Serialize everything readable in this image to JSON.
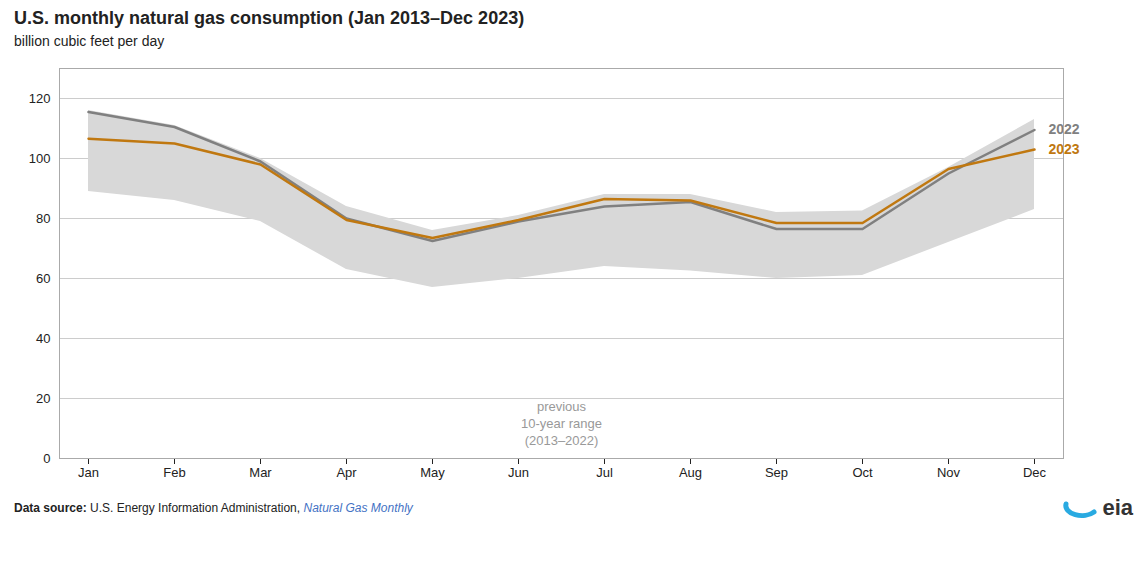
{
  "chart_data": {
    "type": "line",
    "title": "U.S. monthly natural gas consumption (Jan 2013–Dec 2023)",
    "subtitle": "billion cubic feet per day",
    "categories": [
      "Jan",
      "Feb",
      "Mar",
      "Apr",
      "May",
      "Jun",
      "Jul",
      "Aug",
      "Sep",
      "Oct",
      "Nov",
      "Dec"
    ],
    "series": [
      {
        "name": "2022",
        "color": "#808080",
        "values": [
          115.5,
          110.5,
          99.0,
          80.0,
          72.5,
          79.0,
          84.0,
          85.5,
          76.5,
          76.5,
          95.0,
          109.5
        ]
      },
      {
        "name": "2023",
        "color": "#C07810",
        "values": [
          106.6,
          105.0,
          98.0,
          79.5,
          73.5,
          79.5,
          86.5,
          86.0,
          78.5,
          78.5,
          96.5,
          103.0
        ]
      }
    ],
    "range_upper": [
      116.0,
      111.0,
      100.0,
      84.0,
      76.0,
      81.0,
      88.0,
      88.0,
      82.0,
      82.5,
      97.0,
      113.0
    ],
    "range_lower": [
      89.0,
      86.0,
      79.0,
      63.0,
      57.0,
      60.0,
      64.0,
      62.5,
      60.0,
      61.0,
      72.0,
      83.0
    ],
    "range_color": "#D8D8D8",
    "annotations": [
      "previous\n10-year range\n(2013–2022)"
    ],
    "ylim": [
      0,
      130
    ],
    "yticks": [
      0,
      20,
      40,
      60,
      80,
      100,
      120
    ],
    "grid": true,
    "source_label": "Data source:",
    "source": "U.S. Energy Information Administration,",
    "source_title": "Natural Gas Monthly",
    "source_title_color": "#4472C4",
    "logo": "eia",
    "logo_color": "#333333",
    "logo_arc_color": "#29AAE1"
  }
}
